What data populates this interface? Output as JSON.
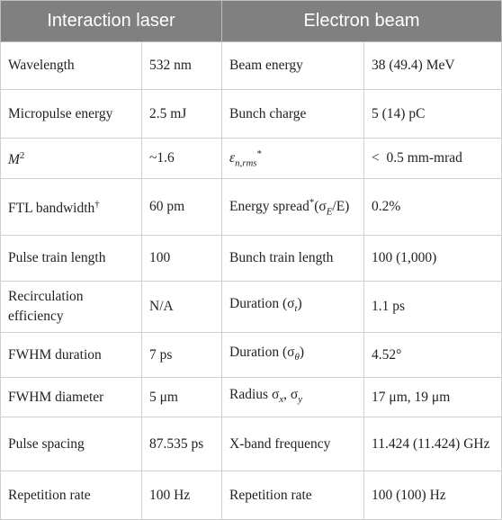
{
  "headers": {
    "laser": "Interaction laser",
    "beam": "Electron beam"
  },
  "rows": [
    {
      "lp": "Wavelength",
      "lv": "532 nm",
      "ep": "Beam energy",
      "ev": "38 (49.4) MeV"
    },
    {
      "lp": "Micropulse energy",
      "lv": "2.5 mJ",
      "ep": "Bunch charge",
      "ev": "5 (14) pC"
    },
    {
      "lp_base": "M",
      "lp_sup": "2",
      "lv": "~1.6",
      "ep_base": "ε",
      "ep_sub": "n,rms",
      "ep_sup": "*",
      "ev": "<  0.5 mm-mrad"
    },
    {
      "lp_base": "FTL bandwidth",
      "lp_sup": "†",
      "lv": "60 pm",
      "ep_pre": "Energy spread",
      "ep_sup": "*",
      "ep_expr_a": "(σ",
      "ep_expr_sub": "E",
      "ep_expr_b": "/E)",
      "ev": "0.2%"
    },
    {
      "lp": "Pulse train length",
      "lv": "100",
      "ep": "Bunch train length",
      "ev": "100 (1,000)"
    },
    {
      "lp": "Recirculation efficiency",
      "lv": "N/A",
      "ep_pre": "Duration (σ",
      "ep_sub": "t",
      "ep_post": ")",
      "ev": "1.1 ps"
    },
    {
      "lp": "FWHM duration",
      "lv": "7 ps",
      "ep_pre": "Duration (σ",
      "ep_sub": "θ",
      "ep_post": ")",
      "ev": "4.52°"
    },
    {
      "lp": "FWHM diameter",
      "lv": "5 μm",
      "ep_pre": "Radius σ",
      "ep_sub": "x",
      "ep_mid": ", σ",
      "ep_sub2": "y",
      "ev": "17 μm, 19 μm"
    },
    {
      "lp": "Pulse spacing",
      "lv": "87.535 ps",
      "ep": "X-band frequency",
      "ev": "11.424 (11.424) GHz"
    },
    {
      "lp": "Repetition rate",
      "lv": "100 Hz",
      "ep": "Repetition rate",
      "ev": "100 (100) Hz"
    }
  ]
}
